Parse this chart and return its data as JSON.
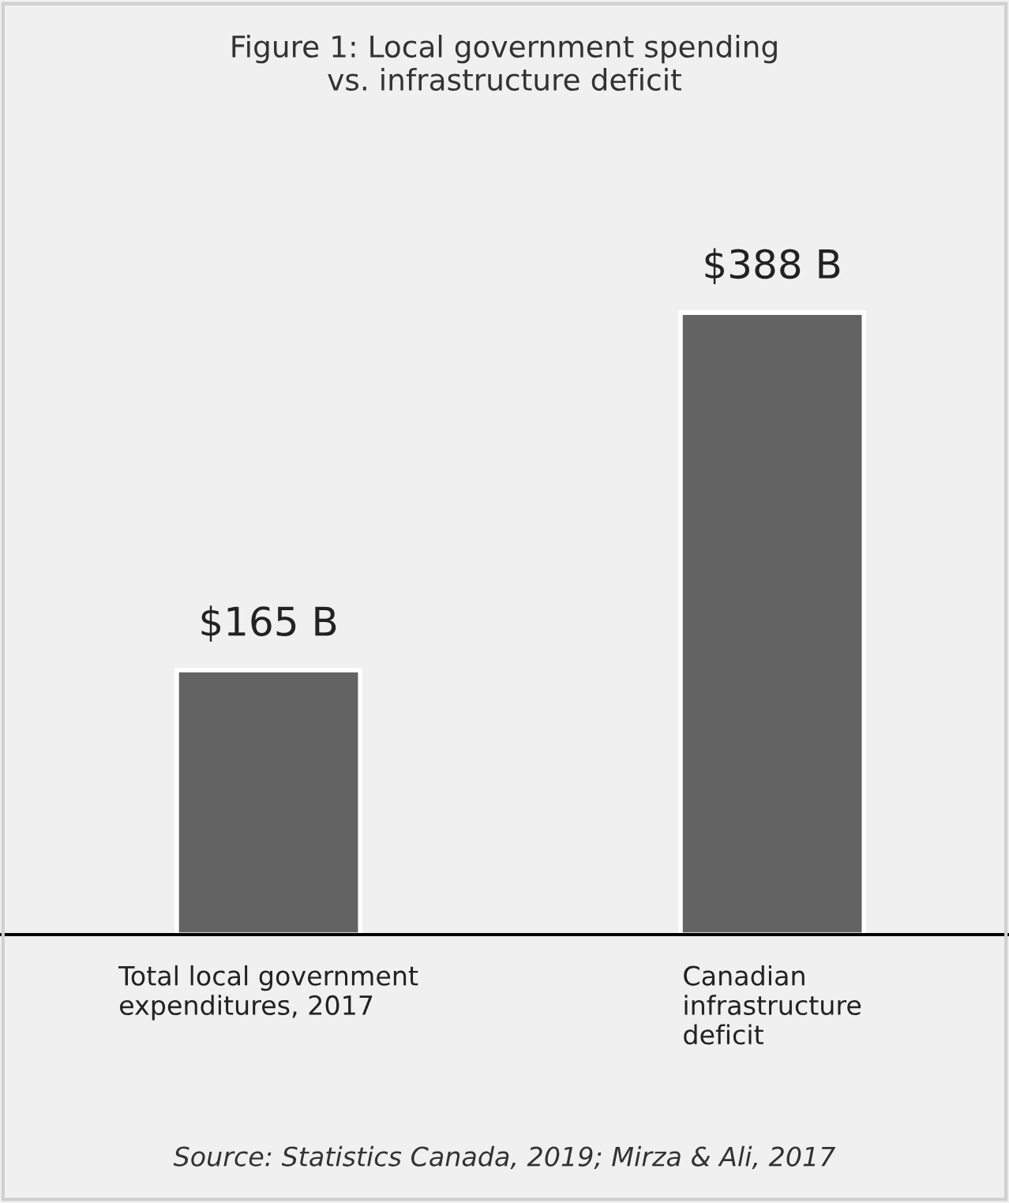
{
  "chart_data": {
    "type": "bar",
    "title": "Figure 1: Local government spending\nvs. infrastructure deficit",
    "categories": [
      "Total local government\nexpenditures, 2017",
      "Canadian\ninfrastructure\ndeficit"
    ],
    "values": [
      165,
      388
    ],
    "color": "#636363",
    "value_labels": [
      "$165 B",
      "$388 B"
    ],
    "annotations": [
      "Source: Statistics Canada, 2019; Mirza & Ali, 2017"
    ],
    "grid": false,
    "legend": false
  }
}
